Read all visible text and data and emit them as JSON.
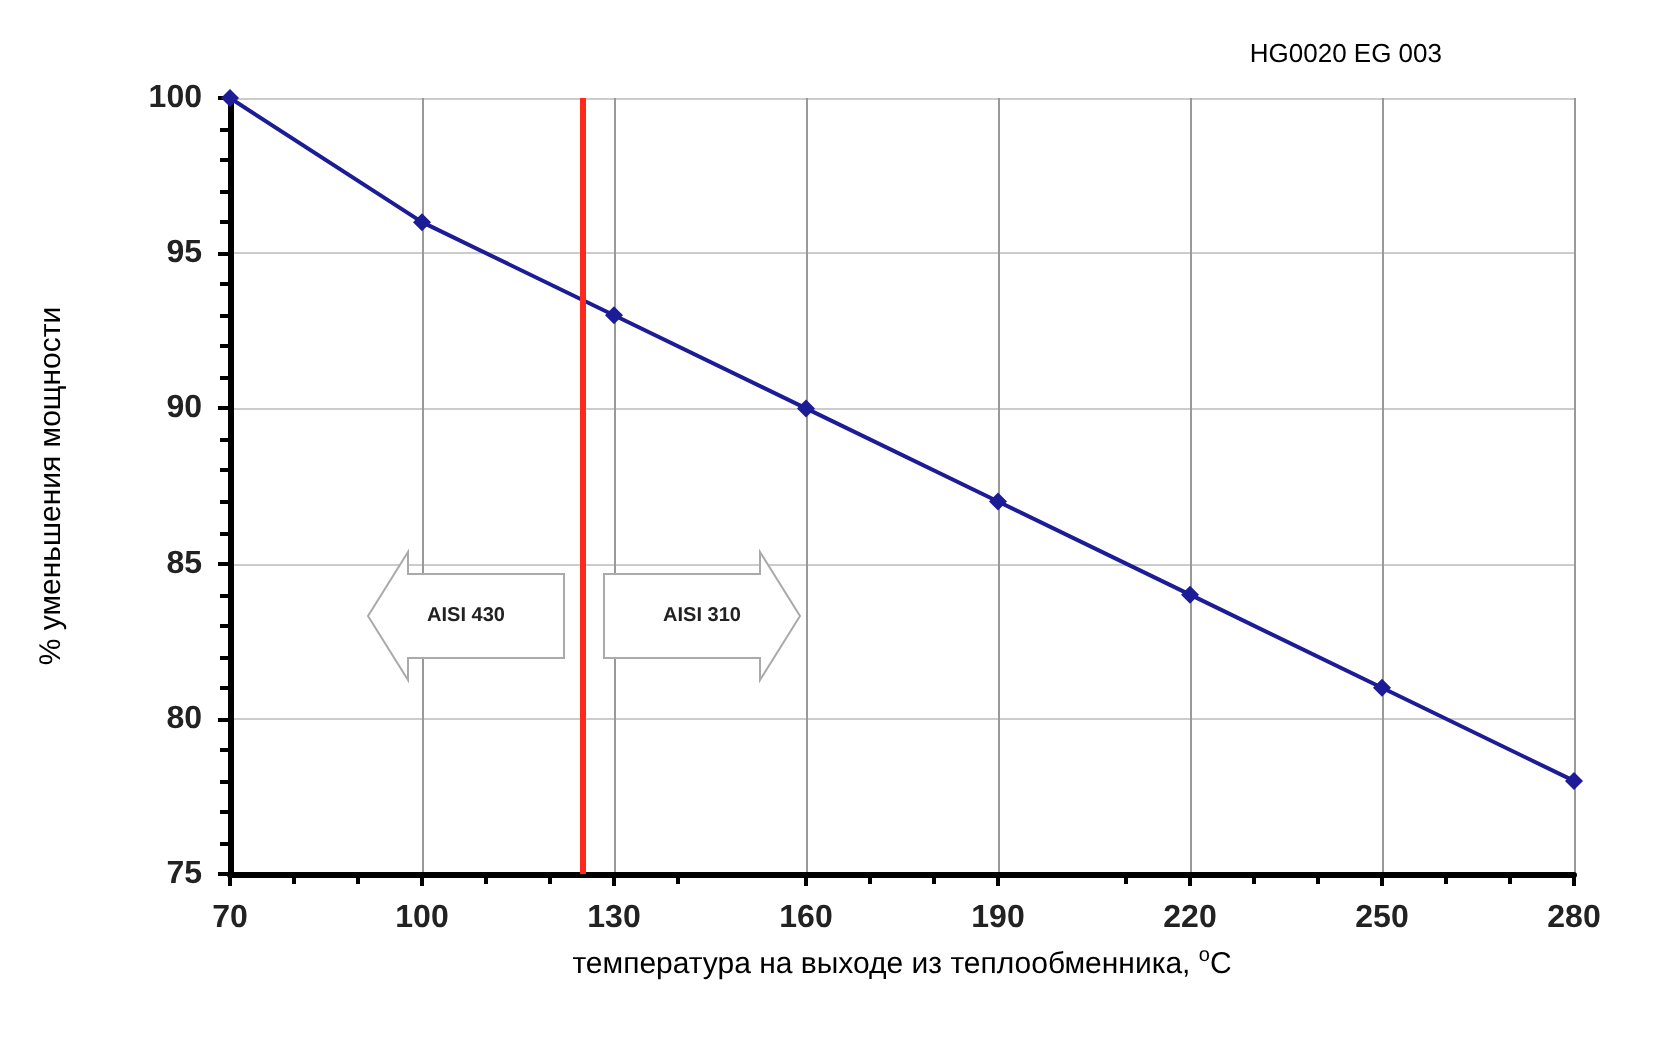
{
  "chart_data": {
    "type": "line",
    "xlabel": "температура на выходе из теплообменника, $^{o}$C",
    "ylabel": "% уменьшения мощности",
    "x": [
      70,
      100,
      130,
      160,
      190,
      220,
      250,
      280
    ],
    "series": [
      {
        "color": "#1c1c96",
        "values": [
          100,
          96,
          93,
          90,
          87,
          84,
          81,
          78
        ]
      }
    ],
    "xlim": [
      70,
      280
    ],
    "xticks": [
      70,
      100,
      130,
      160,
      190,
      220,
      250,
      280
    ],
    "ylim": [
      75,
      100
    ],
    "yticks": [
      75,
      80,
      85,
      90,
      95,
      100
    ],
    "grid": true,
    "marker": "diamond",
    "line_style": "solid",
    "ref_lines": [
      {
        "axis": "x",
        "value": 125,
        "color": "#ff2a1a"
      }
    ],
    "annotations": [
      "AISI 430",
      "AISI 310",
      "HG0020 EG 003"
    ]
  }
}
